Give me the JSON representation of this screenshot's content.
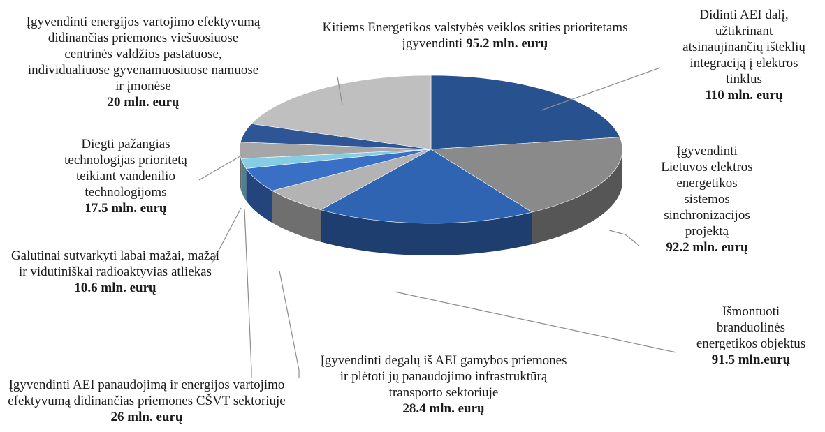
{
  "chart_data": {
    "type": "pie3d",
    "categories": [
      "Didinti AEI dalį, užtikrinant atsinaujinančių išteklių integraciją į elektros tinklus",
      "Įgyvendinti Lietuvos elektros energetikos sistemos sinchronizacijos projektą",
      "Išmontuoti branduolinės energetikos objektus",
      "Įgyvendinti degalų iš AEI gamybos priemones ir plėtoti jų panaudojimo infrastruktūrą transporto sektoriuje",
      "Įgyvendinti AEI panaudojimą ir energijos vartojimo efektyvumą didinančias priemones CŠVT sektoriuje",
      "Galutinai sutvarkyti labai mažai, mažai ir vidutiniškai radioaktyvias atliekas",
      "Diegti pažangias technologijas prioritetą teikiant vandenilio technologijoms",
      "Įgyvendinti energijos vartojimo efektyvumą didinančias priemones viešuosiuose centrinės valdžios pastatuose, individualiuose gyvenamuosiuose namuose ir įmonėse",
      "Kitiems Energetikos valstybės veiklos srities prioritetams įgyvendinti"
    ],
    "values": [
      110,
      92.2,
      91.5,
      28.4,
      26,
      10.6,
      17.5,
      20,
      95.2
    ],
    "value_labels": [
      "110 mln. eurų",
      "92.2 mln. eurų",
      "91.5 mln.eurų",
      "28.4 mln. eurų",
      "26 mln. eurų",
      "10.6 mln. eurų",
      "17.5 mln. eurų",
      "20 mln. eurų",
      "95.2 mln. eurų"
    ],
    "colors": [
      "#28528f",
      "#8a8a8a",
      "#2f64b2",
      "#b3b3b3",
      "#3a6fc6",
      "#86cde3",
      "#a6a6a6",
      "#2e5596",
      "#bfbfbf"
    ]
  }
}
